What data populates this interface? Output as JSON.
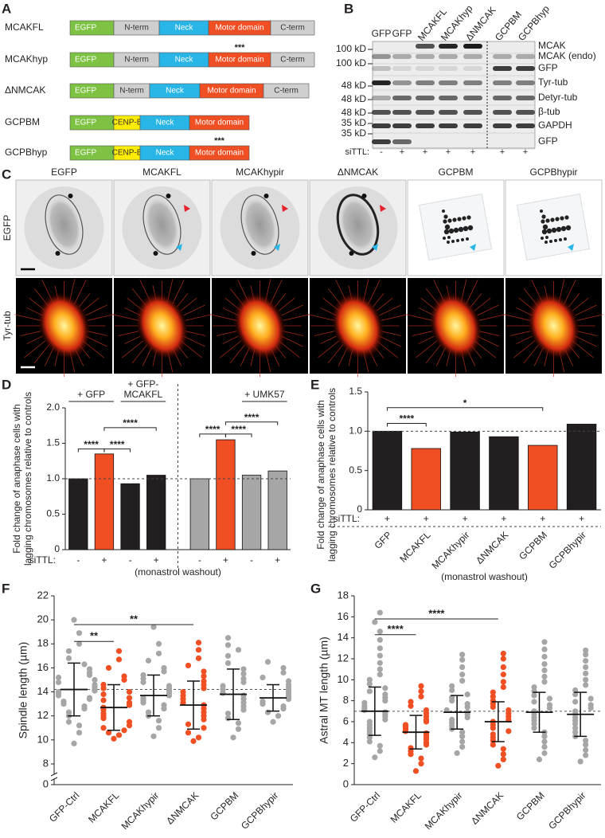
{
  "panel_labels": [
    "A",
    "B",
    "C",
    "D",
    "E",
    "F",
    "G"
  ],
  "constructs": [
    {
      "name": "MCAKFL",
      "domains": [
        {
          "label": "EGFP",
          "color": "#7dc242"
        },
        {
          "label": "N-term",
          "color": "#cfcfcf"
        },
        {
          "label": "Neck",
          "color": "#29b6e6"
        },
        {
          "label": "Motor domain",
          "color": "#f04e23"
        },
        {
          "label": "C-term",
          "color": "#cfcfcf"
        }
      ]
    },
    {
      "name": "MCAKhyp",
      "mutation": "***",
      "domains": [
        {
          "label": "EGFP",
          "color": "#7dc242"
        },
        {
          "label": "N-term",
          "color": "#cfcfcf"
        },
        {
          "label": "Neck",
          "color": "#29b6e6"
        },
        {
          "label": "Motor domain",
          "color": "#f04e23"
        },
        {
          "label": "C-term",
          "color": "#cfcfcf"
        }
      ]
    },
    {
      "name": "ΔNMCAK",
      "domains": [
        {
          "label": "EGFP",
          "color": "#7dc242"
        },
        {
          "label": "N-term",
          "color": "#cfcfcf"
        },
        {
          "label": "Neck",
          "color": "#29b6e6"
        },
        {
          "label": "Motor domain",
          "color": "#f04e23"
        },
        {
          "label": "C-term",
          "color": "#cfcfcf"
        }
      ]
    },
    {
      "name": "GCPBM",
      "domains": [
        {
          "label": "EGFP",
          "color": "#7dc242"
        },
        {
          "label": "CENP-B",
          "color": "#ffed00"
        },
        {
          "label": "Neck",
          "color": "#29b6e6"
        },
        {
          "label": "Motor domain",
          "color": "#f04e23"
        }
      ]
    },
    {
      "name": "GCPBhyp",
      "mutation": "***",
      "domains": [
        {
          "label": "EGFP",
          "color": "#7dc242"
        },
        {
          "label": "CENP-B",
          "color": "#ffed00"
        },
        {
          "label": "Neck",
          "color": "#29b6e6"
        },
        {
          "label": "Motor domain",
          "color": "#f04e23"
        }
      ]
    }
  ],
  "blot": {
    "lanes": [
      "GFP",
      "GFP",
      "MCAKFL",
      "MCAKhyp",
      "ΔNMCAK",
      "GCPBM",
      "GCPBhyp"
    ],
    "treatment_label": "siTTL:",
    "treatment": [
      "-",
      "+",
      "+",
      "+",
      "+",
      "+",
      "+"
    ],
    "markers": [
      "100 kD",
      "100 kD",
      "48 kD",
      "48 kD",
      "48 kD",
      "35 kD",
      "35 kD"
    ],
    "bands": [
      "MCAK",
      "MCAK (endo)",
      "GFP",
      "Tyr-tub",
      "Detyr-tub",
      "β-tub",
      "GAPDH",
      "GFP"
    ]
  },
  "imaging": {
    "columns": [
      "EGFP",
      "MCAKFL",
      "MCAKhypir",
      "ΔNMCAK",
      "GCPBM",
      "GCPBhypir"
    ],
    "rows": [
      "EGFP",
      "Tyr-tub"
    ]
  },
  "chart_data": [
    {
      "type": "bar",
      "ylabel": [
        "Fold change of anaphase cells with",
        "lagging chromosomes relative to controls"
      ],
      "category_label": "siTTL:",
      "categories": [
        "-",
        "+",
        "-",
        "+",
        "-",
        "+",
        "-",
        "+"
      ],
      "values": [
        1.0,
        1.35,
        0.93,
        1.05,
        1.0,
        1.55,
        1.05,
        1.11
      ],
      "colors": [
        "#231f20",
        "#f04e23",
        "#231f20",
        "#231f20",
        "#a6a6a6",
        "#f04e23",
        "#a6a6a6",
        "#a6a6a6"
      ],
      "ylim": [
        0,
        2
      ],
      "yticks": [
        0,
        0.5,
        {
          "value": 1,
          "label": "1.0"
        },
        1.5,
        {
          "value": 2,
          "label": "2.0"
        }
      ],
      "reference_line": 1,
      "xlabel": "(monastrol washout)",
      "group_labels": [
        [
          "+ GFP"
        ],
        [
          "+ GFP-",
          "MCAKFL"
        ],
        [
          "+ UMK57"
        ]
      ],
      "significance": [
        "****",
        "****",
        "****",
        "****",
        "****",
        "****"
      ]
    },
    {
      "type": "bar",
      "ylabel": [
        "Fold change of anaphase cells with",
        "lagging chromosomes relative to controls"
      ],
      "categories": [
        "GFP",
        "MCAKFL",
        "MCAKhypir",
        "ΔNMCAK",
        "GCPBM",
        "GCPBhypir"
      ],
      "treatment_label": "siTTL:",
      "treatment": [
        "+",
        "+",
        "+",
        "+",
        "+",
        "+"
      ],
      "values": [
        1.0,
        0.78,
        0.99,
        0.93,
        0.82,
        1.09
      ],
      "colors": [
        "#231f20",
        "#f04e23",
        "#231f20",
        "#231f20",
        "#f04e23",
        "#231f20"
      ],
      "ylim": [
        0,
        1.5
      ],
      "yticks": [
        0,
        0.5,
        {
          "value": 1,
          "label": "1.0"
        },
        1.5
      ],
      "reference_line": 1,
      "xlabel": "(monastrol washout)",
      "significance": [
        "****",
        "*"
      ]
    },
    {
      "type": "dot",
      "ylabel": "Spindle length (µm)",
      "categories": [
        "GFP-Ctrl",
        "MCAKFL",
        "MCAKhypir",
        "ΔNMCAK",
        "GCPBM",
        "GCPBhypir"
      ],
      "colors": [
        "#a6a6a6",
        "#f04e23",
        "#a6a6a6",
        "#f04e23",
        "#a6a6a6",
        "#a6a6a6"
      ],
      "groups": [
        [
          9.7,
          10.6,
          11.2,
          11.5,
          12.0,
          12.3,
          12.6,
          12.8,
          13.0,
          13.2,
          13.4,
          13.5,
          13.7,
          13.9,
          14.0,
          14.1,
          14.2,
          14.4,
          14.6,
          14.8,
          15.0,
          15.2,
          15.4,
          15.6,
          15.9,
          16.3,
          16.8,
          17.4,
          18.0,
          18.9,
          20.0
        ],
        [
          10.1,
          10.4,
          10.6,
          10.8,
          11.0,
          11.2,
          11.5,
          11.8,
          12.0,
          12.2,
          12.5,
          12.7,
          12.9,
          13.1,
          13.3,
          13.5,
          13.8,
          14.0,
          14.3,
          14.6,
          15.0,
          15.3,
          16.0,
          16.7,
          17.4
        ],
        [
          10.3,
          11.0,
          11.6,
          12.0,
          12.3,
          12.6,
          12.9,
          13.1,
          13.3,
          13.5,
          13.7,
          13.9,
          14.1,
          14.3,
          14.5,
          14.8,
          15.1,
          15.4,
          15.7,
          16.0,
          16.6,
          17.2,
          18.0,
          19.4
        ],
        [
          9.9,
          10.2,
          10.6,
          11.0,
          11.3,
          11.7,
          12.0,
          12.3,
          12.6,
          12.9,
          13.1,
          13.4,
          13.7,
          14.0,
          14.3,
          14.6,
          14.9,
          15.3,
          15.7,
          16.2,
          16.8,
          17.5,
          18.1
        ],
        [
          10.2,
          10.9,
          11.4,
          11.8,
          12.2,
          12.5,
          12.8,
          13.1,
          13.4,
          13.7,
          13.9,
          14.2,
          14.5,
          14.8,
          15.1,
          15.5,
          15.9,
          16.4,
          17.0,
          17.5,
          17.9,
          18.5
        ],
        [
          11.5,
          12.0,
          12.3,
          12.6,
          12.8,
          13.0,
          13.2,
          13.4,
          13.6,
          13.8,
          14.0,
          14.2,
          14.4,
          14.6,
          14.9,
          15.2,
          15.6,
          16.0,
          16.5
        ]
      ],
      "means": [
        14.2,
        12.7,
        13.7,
        12.9,
        13.8,
        13.5
      ],
      "sd": [
        2.2,
        1.9,
        1.7,
        2.0,
        2.1,
        1.1
      ],
      "ylim": [
        0,
        22
      ],
      "axis_break": [
        0,
        8
      ],
      "yticks": [
        0,
        8,
        10,
        12,
        14,
        16,
        18,
        20,
        22
      ],
      "reference_line": 14.2,
      "significance": [
        "**",
        "**"
      ]
    },
    {
      "type": "dot",
      "ylabel": "Astral MT length (µm)",
      "categories": [
        "GFP-Ctrl",
        "MCAKFL",
        "MCAKhypir",
        "ΔNMCAK",
        "GCPBM",
        "GCPBhypir"
      ],
      "colors": [
        "#a6a6a6",
        "#f04e23",
        "#a6a6a6",
        "#f04e23",
        "#a6a6a6",
        "#a6a6a6"
      ],
      "groups": [
        [
          2.6,
          3.2,
          3.7,
          4.1,
          4.5,
          4.8,
          5.1,
          5.4,
          5.7,
          6.0,
          6.2,
          6.5,
          6.7,
          6.9,
          7.1,
          7.3,
          7.5,
          7.8,
          8.0,
          8.3,
          8.6,
          8.9,
          9.2,
          9.6,
          10.0,
          10.5,
          11.0,
          11.6,
          12.3,
          13.0,
          13.8,
          14.6,
          15.5,
          16.4
        ],
        [
          1.3,
          2.0,
          2.5,
          2.9,
          3.2,
          3.5,
          3.8,
          4.0,
          4.3,
          4.5,
          4.7,
          4.9,
          5.1,
          5.3,
          5.5,
          5.7,
          6.0,
          6.2,
          6.5,
          6.8,
          7.1,
          7.5,
          7.9,
          8.4,
          8.9,
          9.4
        ],
        [
          3.0,
          3.6,
          4.1,
          4.6,
          5.0,
          5.3,
          5.6,
          5.9,
          6.2,
          6.4,
          6.7,
          6.9,
          7.1,
          7.4,
          7.7,
          8.0,
          8.3,
          8.6,
          9.0,
          9.4,
          9.9,
          10.5,
          11.2,
          11.9,
          12.4
        ],
        [
          1.8,
          2.4,
          2.9,
          3.4,
          3.8,
          4.2,
          4.5,
          4.8,
          5.1,
          5.4,
          5.7,
          6.0,
          6.2,
          6.5,
          6.8,
          7.1,
          7.4,
          7.7,
          8.0,
          8.4,
          8.8,
          9.3,
          9.8,
          10.5,
          11.2,
          12.0,
          12.5
        ],
        [
          2.4,
          3.0,
          3.6,
          4.1,
          4.6,
          5.0,
          5.4,
          5.8,
          6.1,
          6.4,
          6.7,
          7.0,
          7.3,
          7.6,
          7.9,
          8.2,
          8.5,
          8.9,
          9.3,
          9.8,
          10.3,
          10.9,
          11.5,
          12.2,
          12.9,
          13.6
        ],
        [
          2.2,
          2.8,
          3.3,
          3.8,
          4.2,
          4.6,
          5.0,
          5.4,
          5.8,
          6.1,
          6.4,
          6.7,
          7.0,
          7.3,
          7.6,
          7.9,
          8.2,
          8.6,
          9.0,
          9.5,
          10.0,
          10.6,
          11.2,
          11.8,
          12.4,
          12.8
        ]
      ],
      "means": [
        7.0,
        5.0,
        6.9,
        6.0,
        6.9,
        6.7
      ],
      "sd": [
        2.3,
        1.6,
        1.6,
        1.9,
        1.9,
        2.1
      ],
      "ylim": [
        0,
        18
      ],
      "yticks": [
        0,
        2,
        4,
        6,
        8,
        10,
        12,
        14,
        16,
        18
      ],
      "reference_line": 7.0,
      "significance": [
        "****",
        "****"
      ]
    }
  ]
}
